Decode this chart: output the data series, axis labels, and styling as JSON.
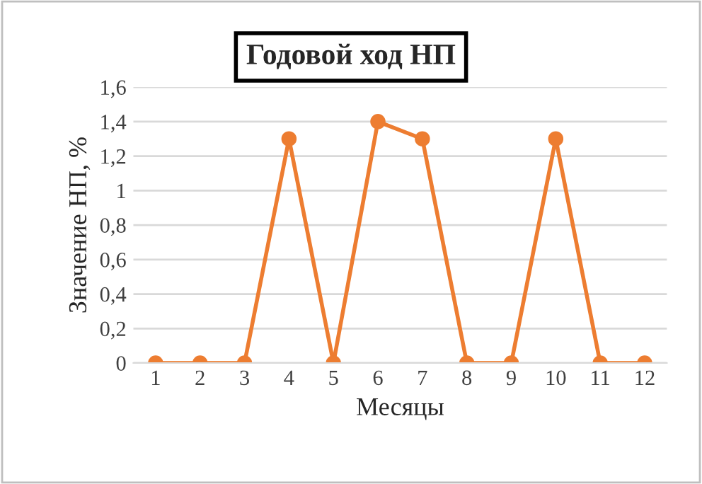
{
  "chart_data": {
    "type": "line",
    "title": "Годовой ход НП",
    "xlabel": "Месяцы",
    "ylabel": "Значение НП, %",
    "categories": [
      "1",
      "2",
      "3",
      "4",
      "5",
      "6",
      "7",
      "8",
      "9",
      "10",
      "11",
      "12"
    ],
    "series": [
      {
        "color": "#ed7d31",
        "values": [
          0,
          0,
          0,
          1.3,
          0,
          1.4,
          1.3,
          0,
          0,
          1.3,
          0,
          0
        ]
      }
    ],
    "ylim": [
      0,
      1.6
    ],
    "yticks": [
      0,
      {
        "value": 0.2,
        "label": "0,2"
      },
      {
        "value": 0.4,
        "label": "0,4"
      },
      {
        "value": 0.6,
        "label": "0,6"
      },
      {
        "value": 0.8,
        "label": "0,8"
      },
      1,
      {
        "value": 1.2,
        "label": "1,2"
      },
      {
        "value": 1.4,
        "label": "1,4"
      },
      {
        "value": 1.6,
        "label": "1,6"
      }
    ],
    "grid": "y",
    "marker": "circle",
    "line_style": "solid",
    "legend": false
  }
}
